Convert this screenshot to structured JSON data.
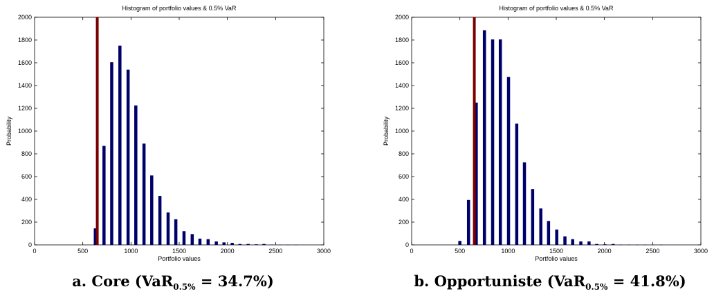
{
  "chart_data": [
    {
      "type": "bar",
      "title": "Histogram of portfolio values & 0.5% VaR",
      "xlabel": "Portfolio values",
      "ylabel": "Probability",
      "xlim": [
        0,
        3000
      ],
      "ylim": [
        0,
        2000
      ],
      "xticks": [
        "0",
        "500",
        "1000",
        "1500",
        "2000",
        "2500",
        "3000"
      ],
      "yticks": [
        "0",
        "200",
        "400",
        "600",
        "800",
        "1000",
        "1200",
        "1400",
        "1600",
        "1800",
        "2000"
      ],
      "bar_color": "#00006b",
      "var_line": {
        "x": 650,
        "color": "#7a0000"
      },
      "bars": [
        {
          "x": 630,
          "y": 145
        },
        {
          "x": 720,
          "y": 870
        },
        {
          "x": 800,
          "y": 1605
        },
        {
          "x": 885,
          "y": 1750
        },
        {
          "x": 970,
          "y": 1540
        },
        {
          "x": 1050,
          "y": 1225
        },
        {
          "x": 1135,
          "y": 890
        },
        {
          "x": 1215,
          "y": 610
        },
        {
          "x": 1300,
          "y": 430
        },
        {
          "x": 1385,
          "y": 285
        },
        {
          "x": 1465,
          "y": 225
        },
        {
          "x": 1550,
          "y": 120
        },
        {
          "x": 1635,
          "y": 95
        },
        {
          "x": 1715,
          "y": 55
        },
        {
          "x": 1800,
          "y": 50
        },
        {
          "x": 1885,
          "y": 30
        },
        {
          "x": 1965,
          "y": 22
        },
        {
          "x": 2050,
          "y": 18
        },
        {
          "x": 2130,
          "y": 8
        },
        {
          "x": 2215,
          "y": 8
        },
        {
          "x": 2300,
          "y": 5
        },
        {
          "x": 2380,
          "y": 8
        },
        {
          "x": 2465,
          "y": 3
        },
        {
          "x": 2550,
          "y": 2
        },
        {
          "x": 2630,
          "y": 2
        },
        {
          "x": 2715,
          "y": 2
        }
      ],
      "caption": {
        "prefix": "a. Core (VaR",
        "sub": "0.5%",
        "suffix": " = 34.7%)"
      }
    },
    {
      "type": "bar",
      "title": "Histogram of portfolio values & 0.5% VaR",
      "xlabel": "Portfolio values",
      "ylabel": "Probability",
      "xlim": [
        0,
        3000
      ],
      "ylim": [
        0,
        2000
      ],
      "xticks": [
        "0",
        "500",
        "1000",
        "1500",
        "2000",
        "2500",
        "3000"
      ],
      "yticks": [
        "0",
        "200",
        "400",
        "600",
        "800",
        "1000",
        "1200",
        "1400",
        "1600",
        "1800",
        "2000"
      ],
      "bar_color": "#00006b",
      "var_line": {
        "x": 650,
        "color": "#7a0000"
      },
      "bars": [
        {
          "x": 500,
          "y": 35
        },
        {
          "x": 590,
          "y": 395
        },
        {
          "x": 670,
          "y": 1250
        },
        {
          "x": 755,
          "y": 1885
        },
        {
          "x": 840,
          "y": 1805
        },
        {
          "x": 920,
          "y": 1805
        },
        {
          "x": 1005,
          "y": 1475
        },
        {
          "x": 1090,
          "y": 1065
        },
        {
          "x": 1170,
          "y": 725
        },
        {
          "x": 1255,
          "y": 490
        },
        {
          "x": 1340,
          "y": 320
        },
        {
          "x": 1420,
          "y": 210
        },
        {
          "x": 1505,
          "y": 135
        },
        {
          "x": 1590,
          "y": 75
        },
        {
          "x": 1670,
          "y": 50
        },
        {
          "x": 1755,
          "y": 30
        },
        {
          "x": 1840,
          "y": 30
        },
        {
          "x": 1920,
          "y": 8
        },
        {
          "x": 2005,
          "y": 5
        },
        {
          "x": 2090,
          "y": 8
        },
        {
          "x": 2170,
          "y": 3
        },
        {
          "x": 2255,
          "y": 3
        },
        {
          "x": 2340,
          "y": 2
        },
        {
          "x": 2420,
          "y": 2
        },
        {
          "x": 2505,
          "y": 2
        },
        {
          "x": 2590,
          "y": 2
        }
      ],
      "caption": {
        "prefix": "b. Opportuniste (VaR",
        "sub": "0.5%",
        "suffix": " = 41.8%)"
      }
    }
  ]
}
